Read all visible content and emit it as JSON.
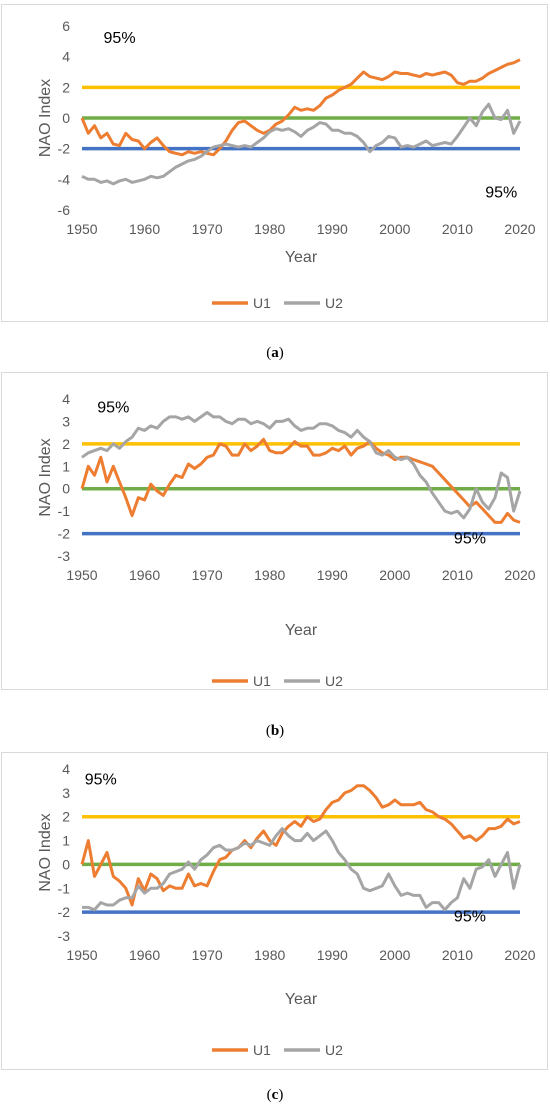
{
  "charts": [
    {
      "caption_open": "(",
      "caption_letter": "a",
      "caption_close": ")",
      "chart_data": {
        "type": "line",
        "xlabel": "Year",
        "ylabel": "NAO Index",
        "xlim": [
          1950,
          2020
        ],
        "ylim": [
          -6,
          6
        ],
        "xticks": [
          1950,
          1960,
          1970,
          1980,
          1990,
          2000,
          2010,
          2020
        ],
        "yticks": [
          -6,
          -4,
          -2,
          0,
          2,
          4,
          6
        ],
        "grid": false,
        "legend": "bottom",
        "reference_lines": [
          {
            "y": 2,
            "color": "#ffc000"
          },
          {
            "y": 0,
            "color": "#70ad47"
          },
          {
            "y": -2,
            "color": "#4472c4"
          }
        ],
        "annotations": [
          {
            "text": "95%",
            "x": 1956,
            "y": 4.9
          },
          {
            "text": "95%",
            "x": 2017,
            "y": -5.2
          }
        ],
        "x_start": 1950,
        "series": [
          {
            "name": "U1",
            "color": "#ed7d31",
            "values": [
              0,
              -1,
              -0.5,
              -1.3,
              -1,
              -1.7,
              -1.8,
              -1,
              -1.4,
              -1.5,
              -2,
              -1.6,
              -1.3,
              -1.8,
              -2.2,
              -2.3,
              -2.4,
              -2.2,
              -2.3,
              -2.2,
              -2.3,
              -2.4,
              -2,
              -1.5,
              -0.8,
              -0.3,
              -0.2,
              -0.5,
              -0.8,
              -1,
              -0.8,
              -0.4,
              -0.2,
              0.2,
              0.7,
              0.5,
              0.6,
              0.5,
              0.8,
              1.3,
              1.5,
              1.8,
              2.0,
              2.2,
              2.6,
              3.0,
              2.7,
              2.6,
              2.5,
              2.7,
              3.0,
              2.9,
              2.9,
              2.8,
              2.7,
              2.9,
              2.8,
              2.9,
              3.0,
              2.8,
              2.3,
              2.2,
              2.4,
              2.4,
              2.6,
              2.9,
              3.1,
              3.3,
              3.5,
              3.6,
              3.8
            ]
          },
          {
            "name": "U2",
            "color": "#a5a5a5",
            "values": [
              -3.8,
              -4,
              -4,
              -4.2,
              -4.1,
              -4.3,
              -4.1,
              -4.0,
              -4.2,
              -4.1,
              -4.0,
              -3.8,
              -3.9,
              -3.8,
              -3.5,
              -3.2,
              -3.0,
              -2.8,
              -2.7,
              -2.5,
              -2.2,
              -1.9,
              -1.8,
              -1.7,
              -1.8,
              -1.9,
              -1.8,
              -1.9,
              -1.6,
              -1.3,
              -0.9,
              -0.7,
              -0.8,
              -0.7,
              -0.9,
              -1.2,
              -0.8,
              -0.6,
              -0.3,
              -0.4,
              -0.8,
              -0.8,
              -1.0,
              -1.0,
              -1.2,
              -1.6,
              -2.2,
              -1.8,
              -1.6,
              -1.2,
              -1.3,
              -1.9,
              -1.8,
              -1.9,
              -1.7,
              -1.5,
              -1.8,
              -1.7,
              -1.6,
              -1.7,
              -1.2,
              -0.6,
              0,
              -0.5,
              0.4,
              0.9,
              0,
              -0.1,
              0.5,
              -1.0,
              -0.2
            ]
          }
        ]
      }
    },
    {
      "caption_open": "(",
      "caption_letter": "b",
      "caption_close": ")",
      "chart_data": {
        "type": "line",
        "xlabel": "Year",
        "ylabel": "NAO Index",
        "xlim": [
          1950,
          2020
        ],
        "ylim": [
          -3,
          4
        ],
        "xticks": [
          1950,
          1960,
          1970,
          1980,
          1990,
          2000,
          2010,
          2020
        ],
        "yticks": [
          -3,
          -2,
          -1,
          0,
          1,
          2,
          3,
          4
        ],
        "grid": false,
        "legend": "bottom",
        "reference_lines": [
          {
            "y": 2,
            "color": "#ffc000"
          },
          {
            "y": 0,
            "color": "#70ad47"
          },
          {
            "y": -2,
            "color": "#4472c4"
          }
        ],
        "annotations": [
          {
            "text": "95%",
            "x": 1955,
            "y": 3.4
          },
          {
            "text": "95%",
            "x": 2012,
            "y": -2.45
          }
        ],
        "x_start": 1950,
        "series": [
          {
            "name": "U1",
            "color": "#ed7d31",
            "values": [
              0,
              1.0,
              0.6,
              1.4,
              0.3,
              1.0,
              0.3,
              -0.4,
              -1.2,
              -0.4,
              -0.5,
              0.2,
              -0.1,
              -0.3,
              0.2,
              0.6,
              0.5,
              1.1,
              0.9,
              1.1,
              1.4,
              1.5,
              2.0,
              1.9,
              1.5,
              1.5,
              2.0,
              1.7,
              1.9,
              2.2,
              1.7,
              1.6,
              1.6,
              1.8,
              2.1,
              1.9,
              1.9,
              1.5,
              1.5,
              1.6,
              1.8,
              1.7,
              1.9,
              1.5,
              1.8,
              1.9,
              2.1,
              1.8,
              1.6,
              1.5,
              1.3,
              1.4,
              1.4,
              1.3,
              1.2,
              1.1,
              1.0,
              0.7,
              0.4,
              0.1,
              -0.2,
              -0.5,
              -0.8,
              -0.6,
              -0.9,
              -1.2,
              -1.5,
              -1.5,
              -1.1,
              -1.4,
              -1.5
            ]
          },
          {
            "name": "U2",
            "color": "#a5a5a5",
            "values": [
              1.4,
              1.6,
              1.7,
              1.8,
              1.7,
              2.0,
              1.8,
              2.1,
              2.3,
              2.7,
              2.6,
              2.8,
              2.7,
              3.0,
              3.2,
              3.2,
              3.1,
              3.2,
              3.0,
              3.2,
              3.4,
              3.2,
              3.2,
              3.0,
              2.9,
              3.1,
              3.1,
              2.9,
              3.0,
              2.9,
              2.7,
              3.0,
              3.0,
              3.1,
              2.8,
              2.6,
              2.7,
              2.7,
              2.9,
              2.9,
              2.8,
              2.6,
              2.5,
              2.3,
              2.6,
              2.3,
              2.1,
              1.6,
              1.5,
              1.7,
              1.4,
              1.3,
              1.4,
              1.1,
              0.6,
              0.3,
              -0.2,
              -0.6,
              -1.0,
              -1.1,
              -1.0,
              -1.3,
              -0.9,
              0.0,
              -0.6,
              -0.9,
              -0.4,
              0.7,
              0.5,
              -1.0,
              -0.1
            ]
          }
        ]
      }
    },
    {
      "caption_open": "(",
      "caption_letter": "c",
      "caption_close": ")",
      "chart_data": {
        "type": "line",
        "xlabel": "Year",
        "ylabel": "NAO Index",
        "xlim": [
          1950,
          2020
        ],
        "ylim": [
          -3,
          4
        ],
        "xticks": [
          1950,
          1960,
          1970,
          1980,
          1990,
          2000,
          2010,
          2020
        ],
        "yticks": [
          -3,
          -2,
          -1,
          0,
          1,
          2,
          3,
          4
        ],
        "grid": false,
        "legend": "bottom",
        "reference_lines": [
          {
            "y": 2,
            "color": "#ffc000"
          },
          {
            "y": 0,
            "color": "#70ad47"
          },
          {
            "y": -2,
            "color": "#4472c4"
          }
        ],
        "annotations": [
          {
            "text": "95%",
            "x": 1953,
            "y": 3.35
          },
          {
            "text": "95%",
            "x": 2012,
            "y": -2.4
          }
        ],
        "x_start": 1950,
        "series": [
          {
            "name": "U1",
            "color": "#ed7d31",
            "values": [
              0,
              1.0,
              -0.5,
              0,
              0.5,
              -0.5,
              -0.7,
              -1.0,
              -1.7,
              -0.6,
              -1.1,
              -0.4,
              -0.6,
              -1.1,
              -0.9,
              -1.0,
              -1.0,
              -0.4,
              -0.9,
              -0.8,
              -0.9,
              -0.3,
              0.2,
              0.3,
              0.6,
              0.7,
              1.0,
              0.7,
              1.1,
              1.4,
              1.0,
              0.8,
              1.3,
              1.6,
              1.8,
              1.6,
              2.0,
              1.8,
              1.9,
              2.3,
              2.6,
              2.7,
              3.0,
              3.1,
              3.3,
              3.3,
              3.1,
              2.8,
              2.4,
              2.5,
              2.7,
              2.5,
              2.5,
              2.5,
              2.6,
              2.3,
              2.2,
              2.0,
              1.9,
              1.7,
              1.4,
              1.1,
              1.2,
              1.0,
              1.2,
              1.5,
              1.5,
              1.6,
              1.9,
              1.7,
              1.8
            ]
          },
          {
            "name": "U2",
            "color": "#a5a5a5",
            "values": [
              -1.8,
              -1.8,
              -1.9,
              -1.6,
              -1.7,
              -1.7,
              -1.5,
              -1.4,
              -1.4,
              -0.9,
              -1.2,
              -1.0,
              -1.0,
              -0.8,
              -0.4,
              -0.3,
              -0.2,
              0.1,
              -0.2,
              0.2,
              0.4,
              0.7,
              0.8,
              0.6,
              0.6,
              0.7,
              0.9,
              0.8,
              1.0,
              0.9,
              0.8,
              1.2,
              1.5,
              1.2,
              1.0,
              1.0,
              1.3,
              1.0,
              1.2,
              1.4,
              1.0,
              0.5,
              0.2,
              -0.2,
              -0.4,
              -1.0,
              -1.1,
              -1.0,
              -0.9,
              -0.4,
              -0.9,
              -1.3,
              -1.2,
              -1.3,
              -1.3,
              -1.8,
              -1.6,
              -1.6,
              -1.9,
              -1.6,
              -1.4,
              -0.6,
              -1.0,
              -0.2,
              -0.1,
              0.2,
              -0.5,
              0.0,
              0.5,
              -1.0,
              0.0
            ]
          }
        ]
      }
    }
  ]
}
